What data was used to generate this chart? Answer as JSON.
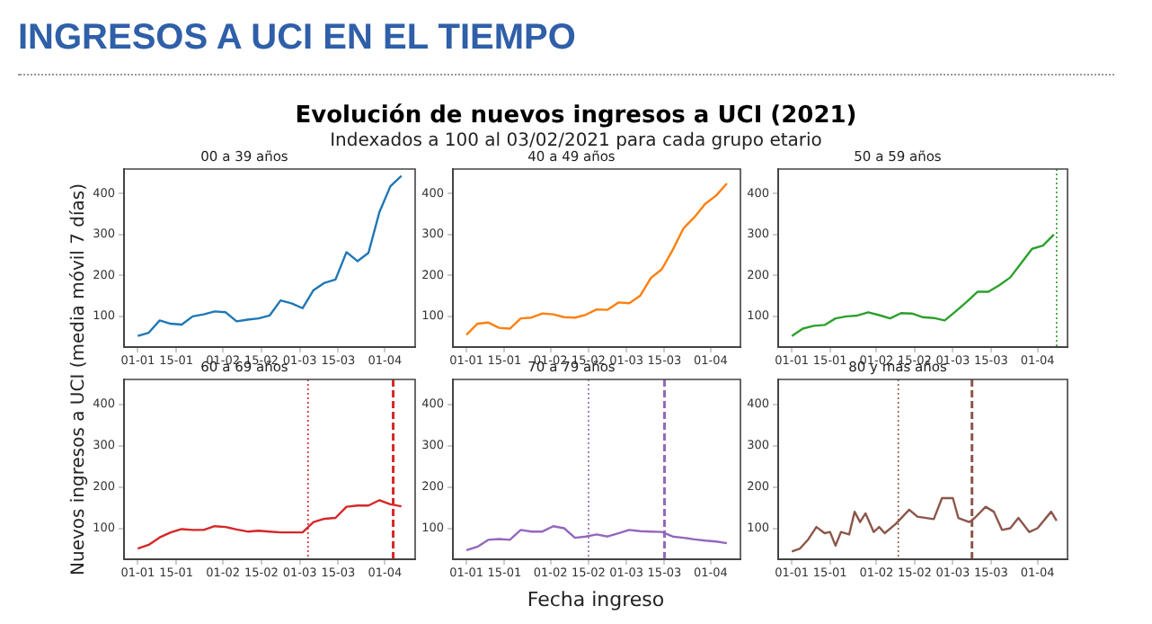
{
  "chart_data": [
    {
      "type": "other",
      "title": "Evolución de nuevos ingresos a UCI (2021)",
      "subtitle": "Indexados a 100 al 03/02/2021 para cada grupo etario",
      "annotations": [
        "INGRESOS A UCI EN EL TIEMPO"
      ]
    },
    {
      "type": "line",
      "title": "00 a 39 años",
      "x": [
        "2021-01-01",
        "2021-01-05",
        "2021-01-09",
        "2021-01-13",
        "2021-01-17",
        "2021-01-21",
        "2021-01-25",
        "2021-01-29",
        "2021-02-02",
        "2021-02-06",
        "2021-02-10",
        "2021-02-14",
        "2021-02-18",
        "2021-02-22",
        "2021-02-26",
        "2021-03-02",
        "2021-03-06",
        "2021-03-10",
        "2021-03-14",
        "2021-03-18",
        "2021-03-22",
        "2021-03-26",
        "2021-03-30",
        "2021-04-03",
        "2021-04-07"
      ],
      "series": [
        {
          "color": "#1f77b4",
          "values": [
            52,
            60,
            90,
            82,
            80,
            100,
            105,
            112,
            110,
            88,
            92,
            95,
            102,
            139,
            132,
            120,
            164,
            182,
            190,
            257,
            235,
            255,
            355,
            418,
            443
          ]
        }
      ],
      "xlim": [
        "2020-12-27",
        "2021-04-12"
      ],
      "xticks": [
        {
          "value": "2021-01-01",
          "label": "01-01"
        },
        {
          "value": "2021-01-15",
          "label": "15-01"
        },
        {
          "value": "2021-02-01",
          "label": "01-02"
        },
        {
          "value": "2021-02-15",
          "label": "15-02"
        },
        {
          "value": "2021-03-01",
          "label": "01-03"
        },
        {
          "value": "2021-03-15",
          "label": "15-03"
        },
        {
          "value": "2021-04-01",
          "label": "01-04"
        }
      ],
      "ylim": [
        25,
        460
      ],
      "yticks": [
        100,
        200,
        300,
        400
      ],
      "legend": false,
      "grid": false,
      "marker": "none",
      "line_style": "solid"
    },
    {
      "type": "line",
      "title": "40 a 49 años",
      "x": [
        "2021-01-01",
        "2021-01-05",
        "2021-01-09",
        "2021-01-13",
        "2021-01-17",
        "2021-01-21",
        "2021-01-25",
        "2021-01-29",
        "2021-02-02",
        "2021-02-06",
        "2021-02-10",
        "2021-02-14",
        "2021-02-18",
        "2021-02-22",
        "2021-02-26",
        "2021-03-02",
        "2021-03-06",
        "2021-03-10",
        "2021-03-14",
        "2021-03-18",
        "2021-03-22",
        "2021-03-26",
        "2021-03-30",
        "2021-04-03",
        "2021-04-07"
      ],
      "series": [
        {
          "color": "#ff7f0e",
          "values": [
            55,
            82,
            85,
            72,
            70,
            95,
            97,
            107,
            105,
            98,
            97,
            104,
            117,
            116,
            134,
            132,
            150,
            194,
            215,
            262,
            315,
            342,
            375,
            395,
            425
          ]
        }
      ],
      "xlim": [
        "2020-12-27",
        "2021-04-12"
      ],
      "xticks": [
        {
          "value": "2021-01-01",
          "label": "01-01"
        },
        {
          "value": "2021-01-15",
          "label": "15-01"
        },
        {
          "value": "2021-02-01",
          "label": "01-02"
        },
        {
          "value": "2021-02-15",
          "label": "15-02"
        },
        {
          "value": "2021-03-01",
          "label": "01-03"
        },
        {
          "value": "2021-03-15",
          "label": "15-03"
        },
        {
          "value": "2021-04-01",
          "label": "01-04"
        }
      ],
      "ylim": [
        25,
        460
      ],
      "yticks": [
        100,
        200,
        300,
        400
      ],
      "legend": false,
      "grid": false,
      "marker": "none",
      "line_style": "solid"
    },
    {
      "type": "line",
      "title": "50 a 59 años",
      "x": [
        "2021-01-01",
        "2021-01-05",
        "2021-01-09",
        "2021-01-13",
        "2021-01-17",
        "2021-01-21",
        "2021-01-25",
        "2021-01-29",
        "2021-02-02",
        "2021-02-06",
        "2021-02-10",
        "2021-02-14",
        "2021-02-18",
        "2021-02-22",
        "2021-02-26",
        "2021-03-02",
        "2021-03-06",
        "2021-03-10",
        "2021-03-14",
        "2021-03-18",
        "2021-03-22",
        "2021-03-26",
        "2021-03-30",
        "2021-04-03",
        "2021-04-07"
      ],
      "series": [
        {
          "color": "#2ca02c",
          "values": [
            52,
            70,
            77,
            79,
            95,
            100,
            102,
            110,
            103,
            95,
            108,
            107,
            98,
            96,
            90,
            112,
            135,
            160,
            160,
            176,
            195,
            230,
            265,
            273,
            300
          ]
        }
      ],
      "xlim": [
        "2020-12-27",
        "2021-04-12"
      ],
      "xticks": [
        {
          "value": "2021-01-01",
          "label": "01-01"
        },
        {
          "value": "2021-01-15",
          "label": "15-01"
        },
        {
          "value": "2021-02-01",
          "label": "01-02"
        },
        {
          "value": "2021-02-15",
          "label": "15-02"
        },
        {
          "value": "2021-03-01",
          "label": "01-03"
        },
        {
          "value": "2021-03-15",
          "label": "15-03"
        },
        {
          "value": "2021-04-01",
          "label": "01-04"
        }
      ],
      "ylim": [
        25,
        460
      ],
      "yticks": [
        100,
        200,
        300,
        400
      ],
      "legend": false,
      "grid": false,
      "marker": "none",
      "line_style": "solid",
      "ref_lines": [
        {
          "axis": "x",
          "value": "2021-04-08",
          "color": "#2ca02c",
          "line_style": "dotted"
        }
      ]
    },
    {
      "type": "line",
      "title": "60 a 69 años",
      "ylabel": "Nuevos ingresos a UCI (media móvil 7 días)",
      "x": [
        "2021-01-01",
        "2021-01-05",
        "2021-01-09",
        "2021-01-13",
        "2021-01-17",
        "2021-01-21",
        "2021-01-25",
        "2021-01-29",
        "2021-02-02",
        "2021-02-06",
        "2021-02-10",
        "2021-02-14",
        "2021-02-18",
        "2021-02-22",
        "2021-02-26",
        "2021-03-02",
        "2021-03-06",
        "2021-03-10",
        "2021-03-14",
        "2021-03-18",
        "2021-03-22",
        "2021-03-26",
        "2021-03-30",
        "2021-04-03",
        "2021-04-07"
      ],
      "series": [
        {
          "color": "#d62728",
          "values": [
            51,
            60,
            78,
            90,
            98,
            96,
            96,
            105,
            103,
            97,
            92,
            94,
            92,
            90,
            90,
            90,
            115,
            123,
            125,
            152,
            155,
            155,
            168,
            158,
            153
          ]
        }
      ],
      "xlim": [
        "2020-12-27",
        "2021-04-12"
      ],
      "xticks": [
        {
          "value": "2021-01-01",
          "label": "01-01"
        },
        {
          "value": "2021-01-15",
          "label": "15-01"
        },
        {
          "value": "2021-02-01",
          "label": "01-02"
        },
        {
          "value": "2021-02-15",
          "label": "15-02"
        },
        {
          "value": "2021-03-01",
          "label": "01-03"
        },
        {
          "value": "2021-03-15",
          "label": "15-03"
        },
        {
          "value": "2021-04-01",
          "label": "01-04"
        }
      ],
      "ylim": [
        25,
        460
      ],
      "yticks": [
        100,
        200,
        300,
        400
      ],
      "legend": false,
      "grid": false,
      "marker": "none",
      "line_style": "solid",
      "ref_lines": [
        {
          "axis": "x",
          "value": "2021-03-04",
          "color": "#d62728",
          "line_style": "dotted"
        },
        {
          "axis": "x",
          "value": "2021-04-04",
          "color": "#d62728",
          "line_style": "dashed"
        }
      ]
    },
    {
      "type": "line",
      "title": "70 a 79 años",
      "xlabel": "Fecha ingreso",
      "x": [
        "2021-01-01",
        "2021-01-05",
        "2021-01-09",
        "2021-01-13",
        "2021-01-17",
        "2021-01-21",
        "2021-01-25",
        "2021-01-29",
        "2021-02-02",
        "2021-02-06",
        "2021-02-10",
        "2021-02-14",
        "2021-02-18",
        "2021-02-22",
        "2021-02-26",
        "2021-03-02",
        "2021-03-06",
        "2021-03-10",
        "2021-03-14",
        "2021-03-18",
        "2021-03-22",
        "2021-03-26",
        "2021-03-30",
        "2021-04-03",
        "2021-04-07"
      ],
      "series": [
        {
          "color": "#9467bd",
          "values": [
            47,
            55,
            72,
            74,
            72,
            96,
            92,
            92,
            105,
            100,
            77,
            80,
            85,
            80,
            88,
            96,
            93,
            92,
            91,
            80,
            77,
            73,
            70,
            68,
            64
          ]
        }
      ],
      "xlim": [
        "2020-12-27",
        "2021-04-12"
      ],
      "xticks": [
        {
          "value": "2021-01-01",
          "label": "01-01"
        },
        {
          "value": "2021-01-15",
          "label": "15-01"
        },
        {
          "value": "2021-02-01",
          "label": "01-02"
        },
        {
          "value": "2021-02-15",
          "label": "15-02"
        },
        {
          "value": "2021-03-01",
          "label": "01-03"
        },
        {
          "value": "2021-03-15",
          "label": "15-03"
        },
        {
          "value": "2021-04-01",
          "label": "01-04"
        }
      ],
      "ylim": [
        25,
        460
      ],
      "yticks": [
        100,
        200,
        300,
        400
      ],
      "legend": false,
      "grid": false,
      "marker": "none",
      "line_style": "solid",
      "ref_lines": [
        {
          "axis": "x",
          "value": "2021-02-15",
          "color": "#9467bd",
          "line_style": "dotted"
        },
        {
          "axis": "x",
          "value": "2021-03-15",
          "color": "#9467bd",
          "line_style": "dashed"
        }
      ]
    },
    {
      "type": "line",
      "title": "80 y más años",
      "x": [
        "2021-01-01",
        "2021-01-04",
        "2021-01-07",
        "2021-01-10",
        "2021-01-13",
        "2021-01-15",
        "2021-01-17",
        "2021-01-19",
        "2021-01-22",
        "2021-01-24",
        "2021-01-26",
        "2021-01-28",
        "2021-01-31",
        "2021-02-02",
        "2021-02-04",
        "2021-02-08",
        "2021-02-13",
        "2021-02-16",
        "2021-02-22",
        "2021-02-25",
        "2021-03-01",
        "2021-03-03",
        "2021-03-07",
        "2021-03-09",
        "2021-03-13",
        "2021-03-16",
        "2021-03-19",
        "2021-03-22",
        "2021-03-25",
        "2021-03-29",
        "2021-04-01",
        "2021-04-06",
        "2021-04-08"
      ],
      "series": [
        {
          "color": "#8c564b",
          "values": [
            44,
            51,
            73,
            103,
            88,
            91,
            58,
            91,
            85,
            140,
            115,
            136,
            91,
            103,
            88,
            110,
            145,
            128,
            122,
            173,
            173,
            125,
            115,
            125,
            152,
            140,
            96,
            100,
            125,
            91,
            100,
            140,
            118
          ]
        }
      ],
      "xlim": [
        "2020-12-27",
        "2021-04-12"
      ],
      "xticks": [
        {
          "value": "2021-01-01",
          "label": "01-01"
        },
        {
          "value": "2021-01-15",
          "label": "15-01"
        },
        {
          "value": "2021-02-01",
          "label": "01-02"
        },
        {
          "value": "2021-02-15",
          "label": "15-02"
        },
        {
          "value": "2021-03-01",
          "label": "01-03"
        },
        {
          "value": "2021-03-15",
          "label": "15-03"
        },
        {
          "value": "2021-04-01",
          "label": "01-04"
        }
      ],
      "ylim": [
        25,
        460
      ],
      "yticks": [
        100,
        200,
        300,
        400
      ],
      "legend": false,
      "grid": false,
      "marker": "none",
      "line_style": "solid",
      "ref_lines": [
        {
          "axis": "x",
          "value": "2021-02-09",
          "color": "#8c564b",
          "line_style": "dotted"
        },
        {
          "axis": "x",
          "value": "2021-03-08",
          "color": "#8c564b",
          "line_style": "dashed"
        }
      ]
    }
  ]
}
